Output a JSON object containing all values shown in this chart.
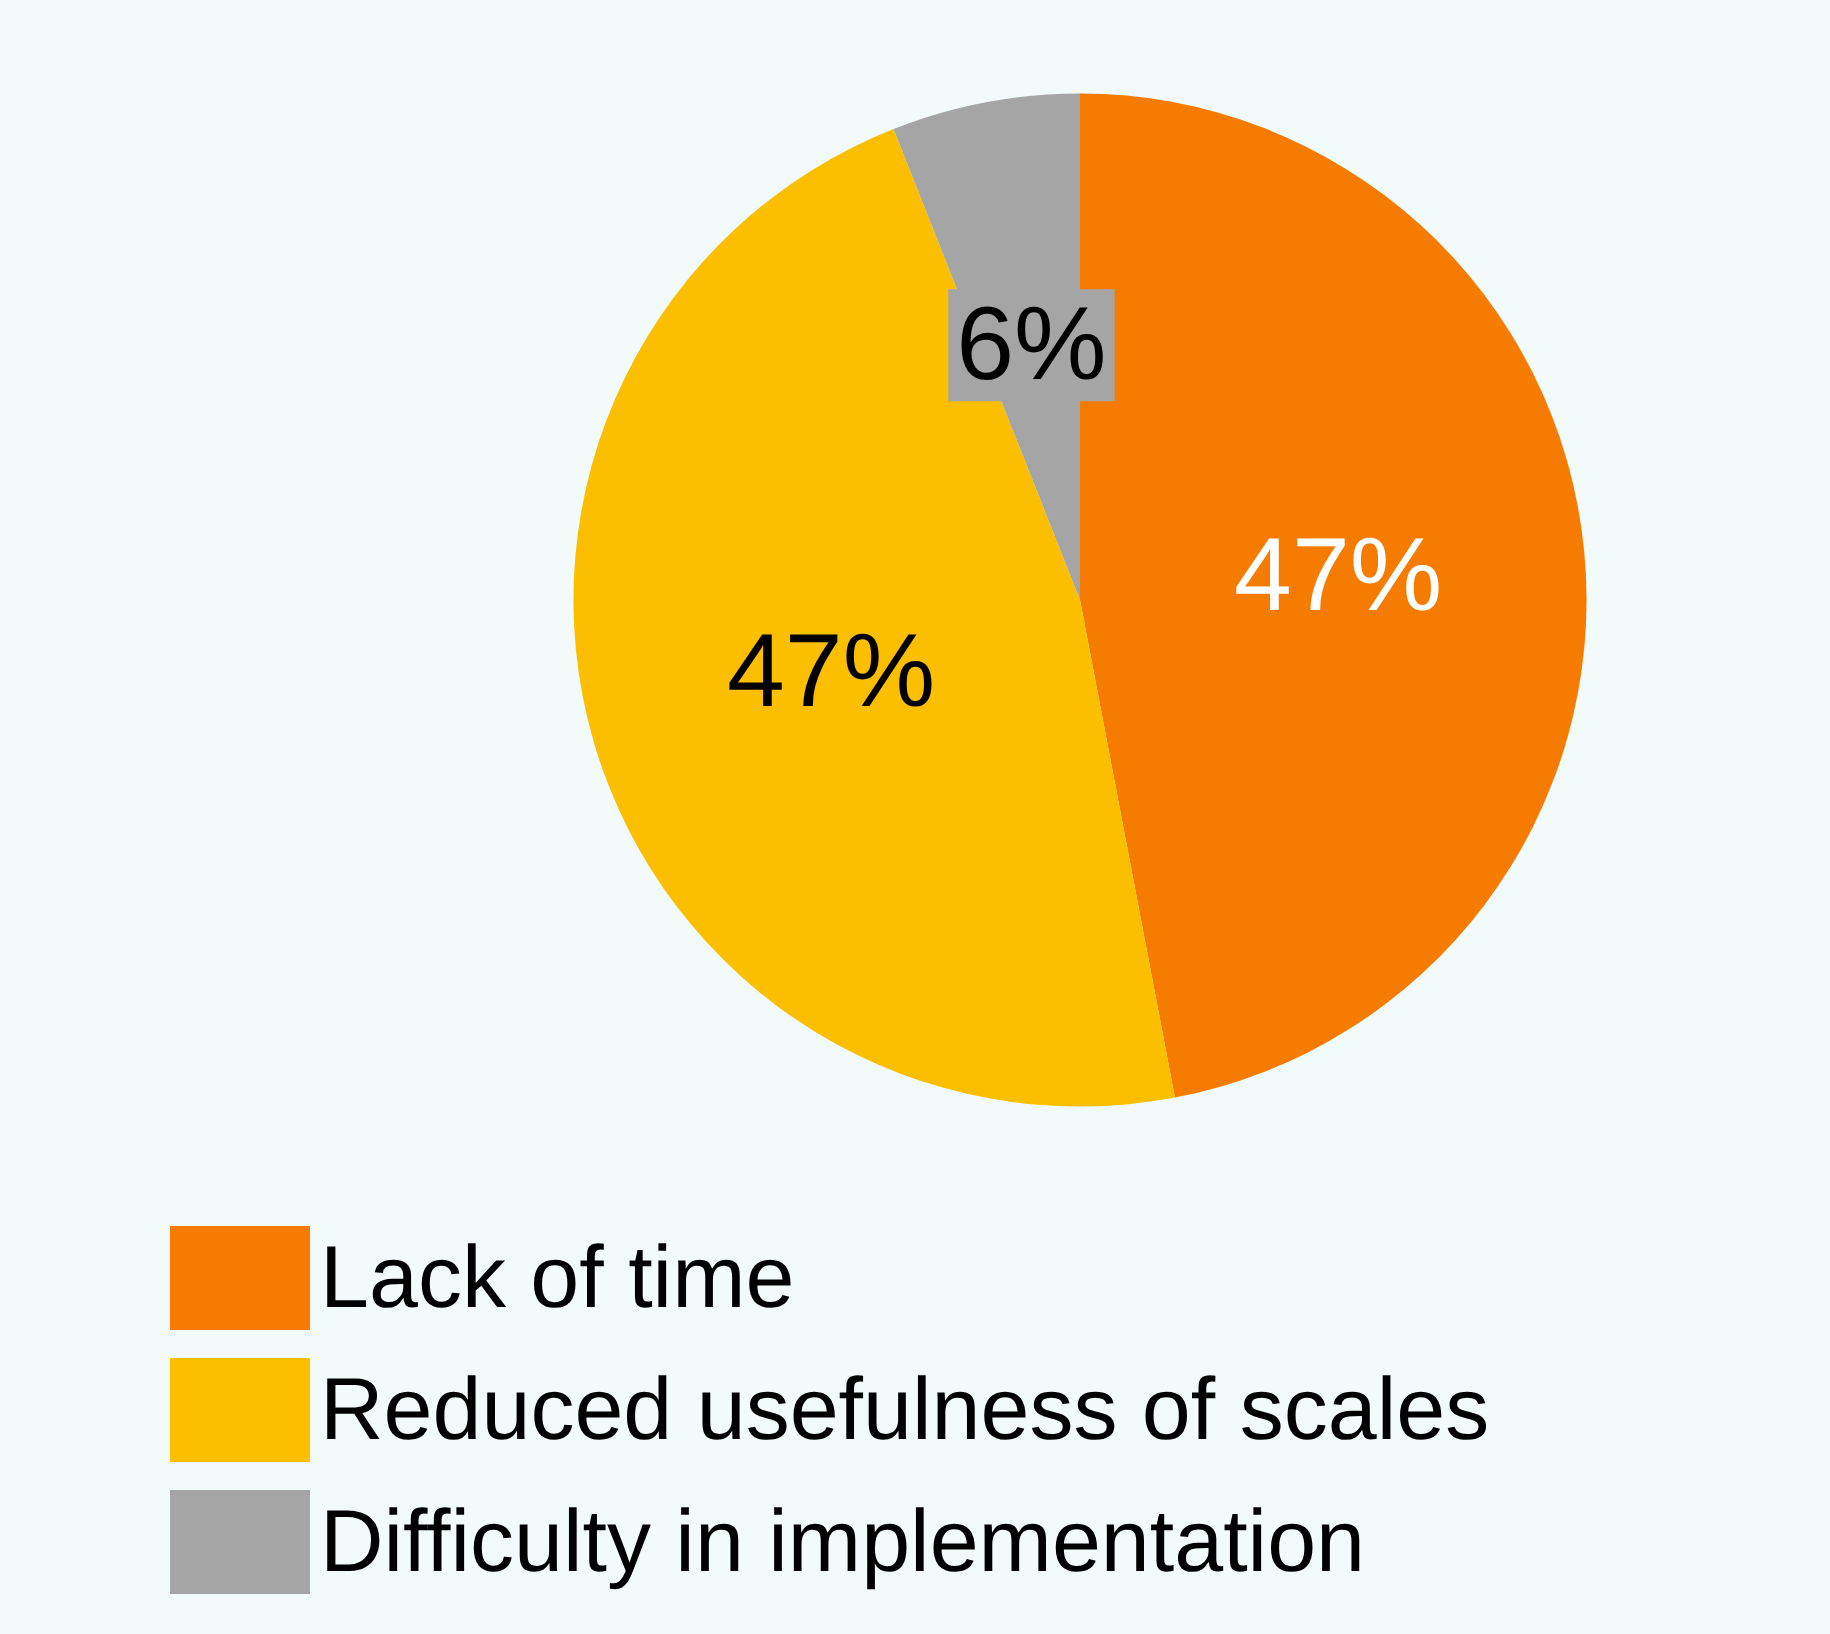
{
  "chart_data": {
    "type": "pie",
    "categories": [
      "Lack of time",
      "Reduced usefulness of scales",
      "Difficulty in implementation"
    ],
    "values": [
      47,
      47,
      6
    ],
    "colors": [
      "#f57c00",
      "#fcbf00",
      "#a5a5a5"
    ],
    "value_labels": [
      "47%",
      "47%",
      "6%"
    ],
    "legend": "bottom left"
  }
}
